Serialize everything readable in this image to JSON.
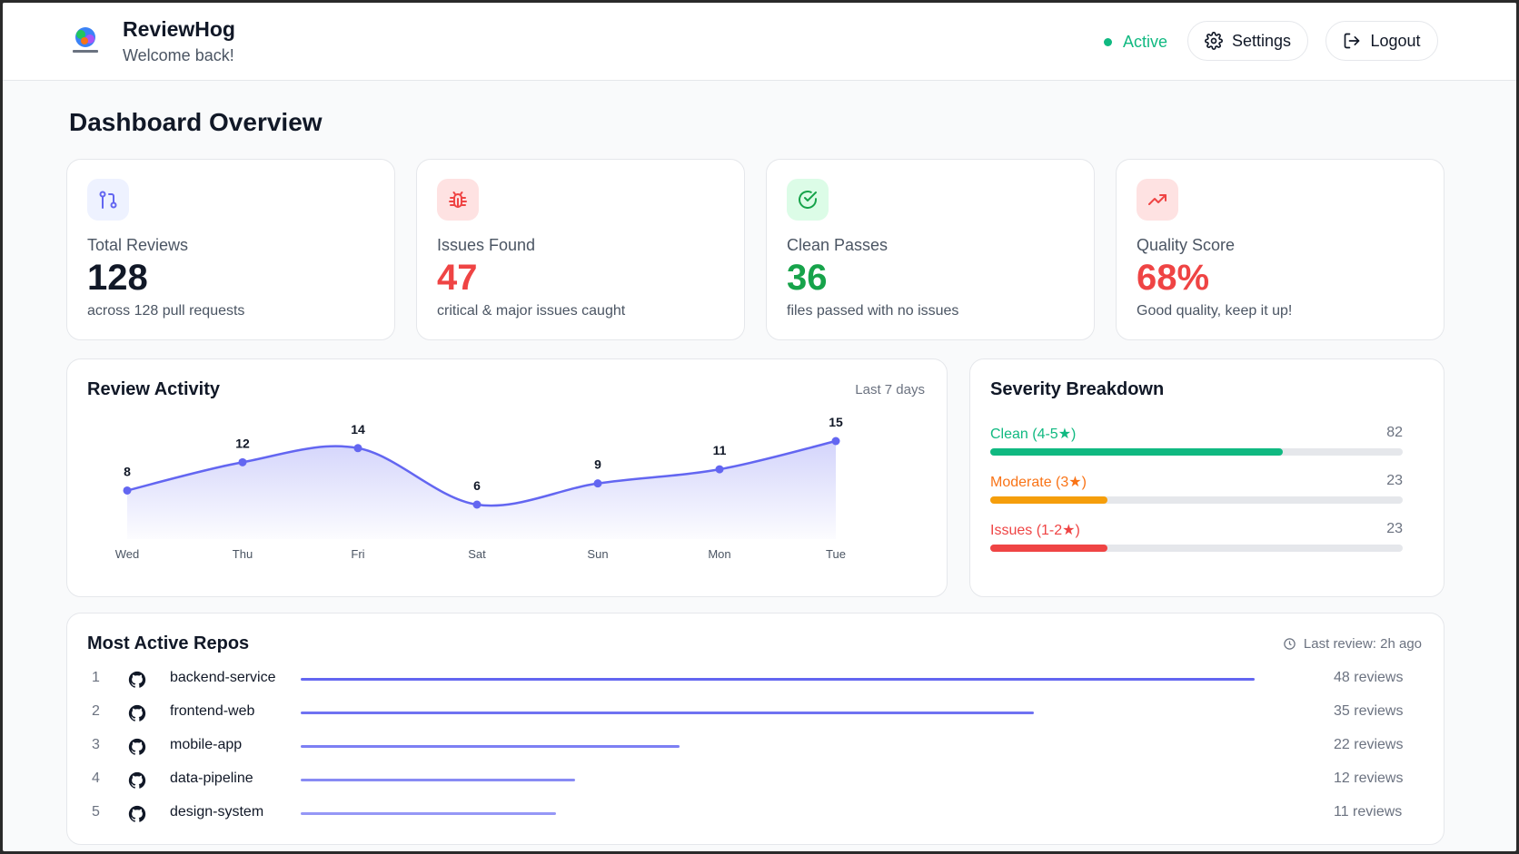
{
  "app": {
    "name": "ReviewHog",
    "subtitle": "Welcome back!",
    "logo_text": "ReviewHog"
  },
  "header": {
    "status_label": "Active",
    "settings_label": "Settings",
    "logout_label": "Logout"
  },
  "page_title": "Dashboard Overview",
  "stats": [
    {
      "label": "Total Reviews",
      "value": "128",
      "desc": "across 128 pull requests",
      "icon": "git-pull-request-icon",
      "color": "#111827",
      "icon_bg": "#eef2ff",
      "icon_color": "#6366f1"
    },
    {
      "label": "Issues Found",
      "value": "47",
      "desc": "critical & major issues caught",
      "icon": "bug-icon",
      "color": "#ef4444",
      "icon_bg": "#fee2e2",
      "icon_color": "#ef4444"
    },
    {
      "label": "Clean Passes",
      "value": "36",
      "desc": "files passed with no issues",
      "icon": "check-circle-icon",
      "color": "#16a34a",
      "icon_bg": "#dcfce7",
      "icon_color": "#16a34a"
    },
    {
      "label": "Quality Score",
      "value": "68%",
      "desc": "Good quality, keep it up!",
      "icon": "trending-up-icon",
      "color": "#ef4444",
      "icon_bg": "#fee2e2",
      "icon_color": "#ef4444"
    }
  ],
  "activity": {
    "title": "Review Activity",
    "range": "Last 7 days"
  },
  "chart_data": {
    "type": "area",
    "title": "Review Activity",
    "categories": [
      "Wed",
      "Thu",
      "Fri",
      "Sat",
      "Sun",
      "Mon",
      "Tue"
    ],
    "values": [
      8,
      12,
      14,
      6,
      9,
      11,
      15
    ],
    "color": "#6366f1"
  },
  "severity": {
    "title": "Severity Breakdown",
    "max": 140,
    "rows": [
      {
        "label": "Clean (4-5★)",
        "count": 82,
        "count_text": "82",
        "color": "#10b981",
        "fraction": 0.71
      },
      {
        "label": "Moderate (3★)",
        "count": 23,
        "count_text": "23",
        "color": "#f59e0b",
        "fraction": 0.285
      },
      {
        "label": "Issues (1-2★)",
        "count": 23,
        "count_text": "23",
        "color": "#ef4444",
        "fraction": 0.285
      }
    ]
  },
  "repos": {
    "title": "Most Active Repos",
    "last_review": "Last review: 2h ago",
    "items": [
      {
        "rank": "1",
        "name": "backend-service",
        "count": 48,
        "count_text": "48 reviews",
        "fraction": 1.0
      },
      {
        "rank": "2",
        "name": "frontend-web",
        "count": 35,
        "count_text": "35 reviews",
        "fraction": 0.769
      },
      {
        "rank": "3",
        "name": "mobile-app",
        "count": 22,
        "count_text": "22 reviews",
        "fraction": 0.397
      },
      {
        "rank": "4",
        "name": "data-pipeline",
        "count": 12,
        "count_text": "12 reviews",
        "fraction": 0.288
      },
      {
        "rank": "5",
        "name": "design-system",
        "count": 11,
        "count_text": "11 reviews",
        "fraction": 0.268
      }
    ]
  }
}
